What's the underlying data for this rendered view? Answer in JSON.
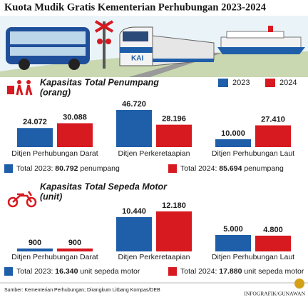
{
  "header": {
    "title": "Kuota Mudik Gratis Kementerian Perhubungan 2023-2024"
  },
  "chart_data": [
    {
      "type": "bar",
      "title": "Kapasitas Total Penumpang",
      "subtitle": "(orang)",
      "categories": [
        "Ditjen Perhubungan Darat",
        "Ditjen Perkeretaapian",
        "Ditjen Perhubungan Laut"
      ],
      "series": [
        {
          "name": "2023",
          "color": "#1f5ea8",
          "values": [
            24072,
            46720,
            10000
          ],
          "value_labels": [
            "24.072",
            "46.720",
            "10.000"
          ]
        },
        {
          "name": "2024",
          "color": "#d71920",
          "values": [
            30088,
            28196,
            27410
          ],
          "value_labels": [
            "30.088",
            "28.196",
            "27.410"
          ]
        }
      ],
      "legend": "top-right",
      "totals": [
        {
          "label": "Total 2023:",
          "value": "80.792",
          "unit": "penumpang"
        },
        {
          "label": "Total 2024:",
          "value": "85.694",
          "unit": "penumpang"
        }
      ]
    },
    {
      "type": "bar",
      "title": "Kapasitas Total Sepeda Motor",
      "subtitle": "(unit)",
      "categories": [
        "Ditjen Perhubungan Darat",
        "Ditjen Perkeretaapian",
        "Ditjen Perhubungan Laut"
      ],
      "series": [
        {
          "name": "2023",
          "color": "#1f5ea8",
          "values": [
            900,
            10440,
            5000
          ],
          "value_labels": [
            "900",
            "10.440",
            "5.000"
          ]
        },
        {
          "name": "2024",
          "color": "#d71920",
          "values": [
            900,
            12180,
            4800
          ],
          "value_labels": [
            "900",
            "12.180",
            "4.800"
          ]
        }
      ],
      "totals": [
        {
          "label": "Total 2023:",
          "value": "16.340",
          "unit": "unit sepeda motor"
        },
        {
          "label": "Total 2024:",
          "value": "17.880",
          "unit": "unit sepeda motor"
        }
      ]
    }
  ],
  "footer": {
    "source": "Sumber: Kementerian Perhubungan; Dirangkum Litbang Kompas/DEB",
    "credit": "INFOGRAFIK/GUNAWAN"
  }
}
